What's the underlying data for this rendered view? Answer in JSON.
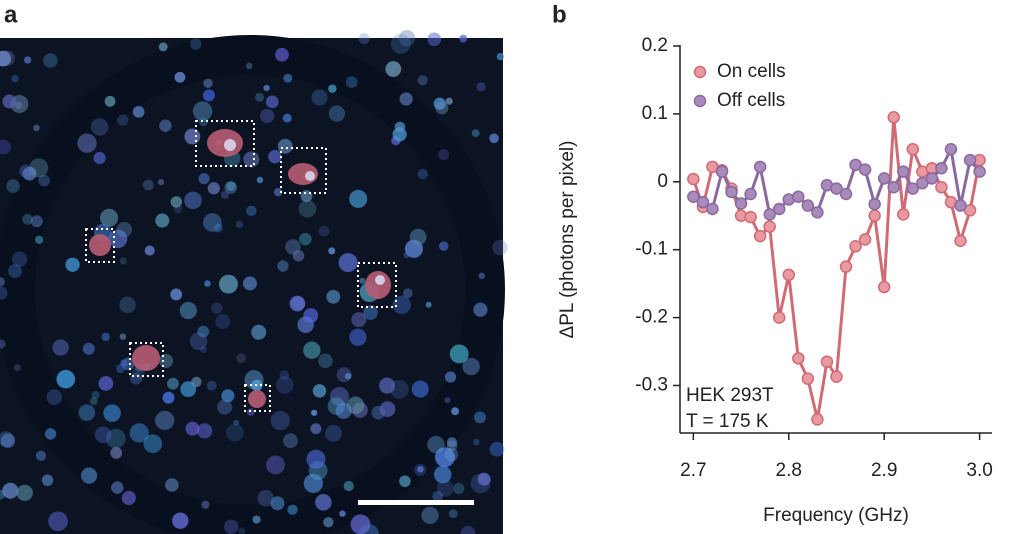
{
  "panel_labels": [
    "a",
    "b"
  ],
  "chart_data": {
    "type": "line",
    "xlabel": "Frequency (GHz)",
    "ylabel": "ΔPL (photons per pixel)",
    "annotations": [
      "HEK 293T",
      "T = 175 K"
    ],
    "x": [
      2.7,
      2.71,
      2.72,
      2.73,
      2.74,
      2.75,
      2.76,
      2.77,
      2.78,
      2.79,
      2.8,
      2.81,
      2.82,
      2.83,
      2.84,
      2.85,
      2.86,
      2.87,
      2.88,
      2.89,
      2.9,
      2.91,
      2.92,
      2.93,
      2.94,
      2.95,
      2.96,
      2.97,
      2.98,
      2.99,
      3.0
    ],
    "series": [
      {
        "name": "On cells",
        "color": "#d06b76",
        "marker_fill": "#e99aa0",
        "values": [
          0.004,
          -0.037,
          0.022,
          0.017,
          -0.01,
          -0.05,
          -0.052,
          -0.08,
          -0.066,
          -0.2,
          -0.137,
          -0.26,
          -0.29,
          -0.35,
          -0.265,
          -0.287,
          -0.125,
          -0.095,
          -0.085,
          -0.05,
          -0.155,
          0.095,
          -0.048,
          0.048,
          0.015,
          0.02,
          -0.008,
          -0.03,
          -0.087,
          -0.042,
          0.032
        ]
      },
      {
        "name": "Off cells",
        "color": "#8a6a9e",
        "marker_fill": "#a98bbb",
        "values": [
          -0.022,
          -0.03,
          -0.04,
          0.015,
          -0.015,
          -0.032,
          -0.018,
          0.022,
          -0.048,
          -0.04,
          -0.026,
          -0.022,
          -0.035,
          -0.045,
          -0.005,
          -0.01,
          -0.018,
          0.025,
          0.018,
          -0.033,
          0.005,
          -0.008,
          0.015,
          -0.01,
          -0.002,
          0.005,
          0.02,
          0.048,
          -0.035,
          0.032,
          0.015
        ]
      }
    ],
    "xlim": [
      2.686,
      3.013
    ],
    "ylim": [
      -0.37,
      0.2
    ],
    "xticks": [
      2.7,
      2.8,
      2.9,
      {
        "value": 3,
        "label": "3.0"
      }
    ],
    "yticks": [
      0.2,
      0.1,
      0,
      -0.1,
      -0.2,
      -0.3
    ],
    "legend": "upper-left"
  }
}
